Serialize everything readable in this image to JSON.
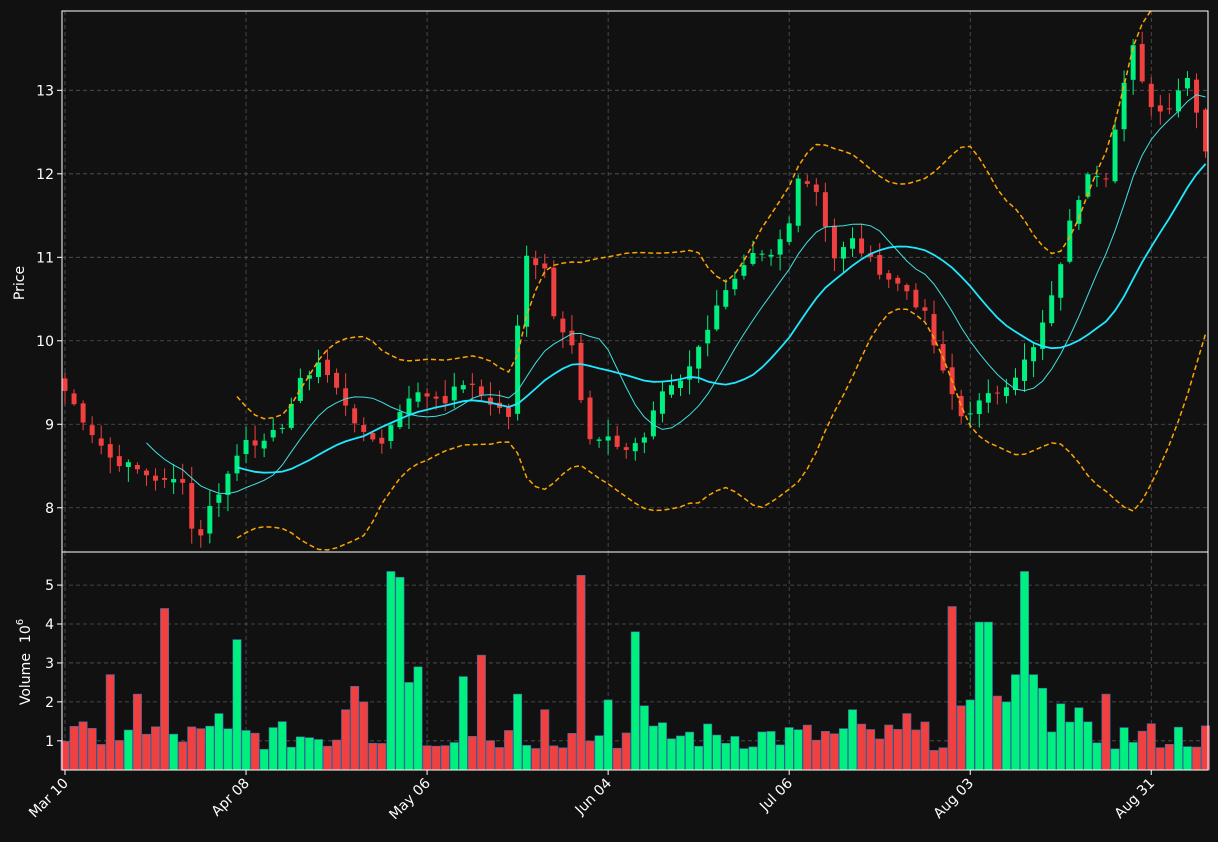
{
  "chart_data": {
    "type": "candlestick",
    "title": "",
    "price_panel": {
      "ylabel": "Price",
      "ylim": [
        7.47,
        13.95
      ],
      "yticks": [
        8,
        9,
        10,
        11,
        12,
        13
      ],
      "ytick_labels": [
        "8",
        "9",
        "10",
        "11",
        "12",
        "13"
      ],
      "grid": true
    },
    "volume_panel": {
      "ylabel": "Volume",
      "ylabel_exp": "10",
      "ylabel_exp_power": "6",
      "ylim": [
        0.25,
        5.85
      ],
      "yticks": [
        1,
        2,
        3,
        4,
        5
      ],
      "ytick_labels": [
        "1",
        "2",
        "3",
        "4",
        "5"
      ],
      "grid": true
    },
    "xticks": [
      {
        "index": 0,
        "label": "Mar 10"
      },
      {
        "index": 20,
        "label": "Apr 08"
      },
      {
        "index": 40,
        "label": "May 06"
      },
      {
        "index": 60,
        "label": "Jun 04"
      },
      {
        "index": 80,
        "label": "Jul 06"
      },
      {
        "index": 100,
        "label": "Aug 03"
      },
      {
        "index": 120,
        "label": "Aug 31"
      }
    ],
    "n_days": 127,
    "colors": {
      "up": "#00f080",
      "down": "#f04040",
      "ma_fast": "#40e0e0",
      "ma_slow": "#20e8ff",
      "bands": "#ffa500",
      "background": "#111111",
      "grid": "#555555",
      "text": "#ffffff"
    },
    "anchors": [
      [
        0,
        9.4
      ],
      [
        3,
        8.9
      ],
      [
        5,
        8.6
      ],
      [
        8,
        8.45
      ],
      [
        11,
        8.3
      ],
      [
        13,
        8.35
      ],
      [
        14,
        7.75
      ],
      [
        15,
        7.7
      ],
      [
        16,
        8.0
      ],
      [
        18,
        8.4
      ],
      [
        20,
        8.85
      ],
      [
        22,
        8.75
      ],
      [
        24,
        9.0
      ],
      [
        26,
        9.5
      ],
      [
        28,
        9.75
      ],
      [
        31,
        9.25
      ],
      [
        33,
        8.85
      ],
      [
        35,
        8.8
      ],
      [
        38,
        9.35
      ],
      [
        40,
        9.35
      ],
      [
        42,
        9.3
      ],
      [
        44,
        9.5
      ],
      [
        46,
        9.35
      ],
      [
        49,
        9.1
      ],
      [
        50,
        10.15
      ],
      [
        51,
        11.0
      ],
      [
        53,
        10.9
      ],
      [
        54,
        10.3
      ],
      [
        56,
        10.0
      ],
      [
        57,
        9.3
      ],
      [
        58,
        8.8
      ],
      [
        60,
        8.8
      ],
      [
        62,
        8.7
      ],
      [
        64,
        8.85
      ],
      [
        66,
        9.4
      ],
      [
        68,
        9.55
      ],
      [
        70,
        9.9
      ],
      [
        72,
        10.45
      ],
      [
        74,
        10.7
      ],
      [
        76,
        11.0
      ],
      [
        78,
        11.0
      ],
      [
        80,
        11.4
      ],
      [
        81,
        12.0
      ],
      [
        83,
        11.8
      ],
      [
        85,
        11.0
      ],
      [
        87,
        11.2
      ],
      [
        89,
        10.95
      ],
      [
        91,
        10.75
      ],
      [
        93,
        10.6
      ],
      [
        95,
        10.3
      ],
      [
        97,
        9.6
      ],
      [
        99,
        9.1
      ],
      [
        101,
        9.25
      ],
      [
        103,
        9.4
      ],
      [
        105,
        9.6
      ],
      [
        107,
        9.9
      ],
      [
        109,
        10.5
      ],
      [
        111,
        11.4
      ],
      [
        113,
        12.05
      ],
      [
        115,
        12.0
      ],
      [
        117,
        13.05
      ],
      [
        118,
        13.5
      ],
      [
        120,
        12.8
      ],
      [
        122,
        12.8
      ],
      [
        124,
        13.2
      ],
      [
        126,
        12.3
      ]
    ],
    "volume_spikes": [
      [
        5,
        2.7
      ],
      [
        8,
        2.2
      ],
      [
        11,
        4.4
      ],
      [
        17,
        1.7
      ],
      [
        19,
        3.6
      ],
      [
        31,
        1.8
      ],
      [
        32,
        2.4
      ],
      [
        33,
        2.0
      ],
      [
        36,
        5.35
      ],
      [
        37,
        5.2
      ],
      [
        38,
        2.5
      ],
      [
        39,
        2.9
      ],
      [
        44,
        2.65
      ],
      [
        46,
        3.2
      ],
      [
        50,
        2.2
      ],
      [
        53,
        1.8
      ],
      [
        57,
        5.25
      ],
      [
        60,
        2.05
      ],
      [
        63,
        3.8
      ],
      [
        64,
        1.9
      ],
      [
        87,
        1.8
      ],
      [
        93,
        1.7
      ],
      [
        98,
        4.45
      ],
      [
        99,
        1.9
      ],
      [
        100,
        2.05
      ],
      [
        101,
        4.05
      ],
      [
        102,
        4.05
      ],
      [
        103,
        2.15
      ],
      [
        104,
        2.0
      ],
      [
        105,
        2.7
      ],
      [
        106,
        5.35
      ],
      [
        107,
        2.7
      ],
      [
        108,
        2.35
      ],
      [
        110,
        1.95
      ],
      [
        112,
        1.85
      ],
      [
        115,
        2.2
      ]
    ],
    "series": [
      {
        "kind": "candles",
        "note": "OHLC candles"
      },
      {
        "kind": "line",
        "window": 10
      },
      {
        "kind": "line",
        "window": 20
      },
      {
        "kind": "band",
        "window": 20
      }
    ]
  }
}
